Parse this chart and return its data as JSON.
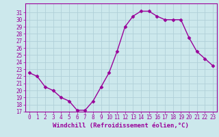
{
  "x": [
    0,
    1,
    2,
    3,
    4,
    5,
    6,
    7,
    8,
    9,
    10,
    11,
    12,
    13,
    14,
    15,
    16,
    17,
    18,
    19,
    20,
    21,
    22,
    23
  ],
  "y": [
    22.5,
    22.0,
    20.5,
    20.0,
    19.0,
    18.5,
    17.2,
    17.2,
    18.5,
    20.5,
    22.5,
    25.5,
    29.0,
    30.5,
    31.2,
    31.2,
    30.5,
    30.0,
    30.0,
    30.0,
    27.5,
    25.5,
    24.5,
    23.5
  ],
  "line_color": "#990099",
  "marker": "D",
  "markersize": 2.5,
  "linewidth": 1.0,
  "xlabel": "Windchill (Refroidissement éolien,°C)",
  "xlabel_fontsize": 6.5,
  "ylabel": "",
  "title": "",
  "xlim": [
    -0.5,
    23.5
  ],
  "ylim": [
    17,
    32
  ],
  "yticks": [
    17,
    18,
    19,
    20,
    21,
    22,
    23,
    24,
    25,
    26,
    27,
    28,
    29,
    30,
    31
  ],
  "xticks": [
    0,
    1,
    2,
    3,
    4,
    5,
    6,
    7,
    8,
    9,
    10,
    11,
    12,
    13,
    14,
    15,
    16,
    17,
    18,
    19,
    20,
    21,
    22,
    23
  ],
  "bg_color": "#cce8ec",
  "grid_color": "#b0d0d8",
  "tick_fontsize": 5.5,
  "tick_color": "#990099",
  "spine_color": "#990099"
}
